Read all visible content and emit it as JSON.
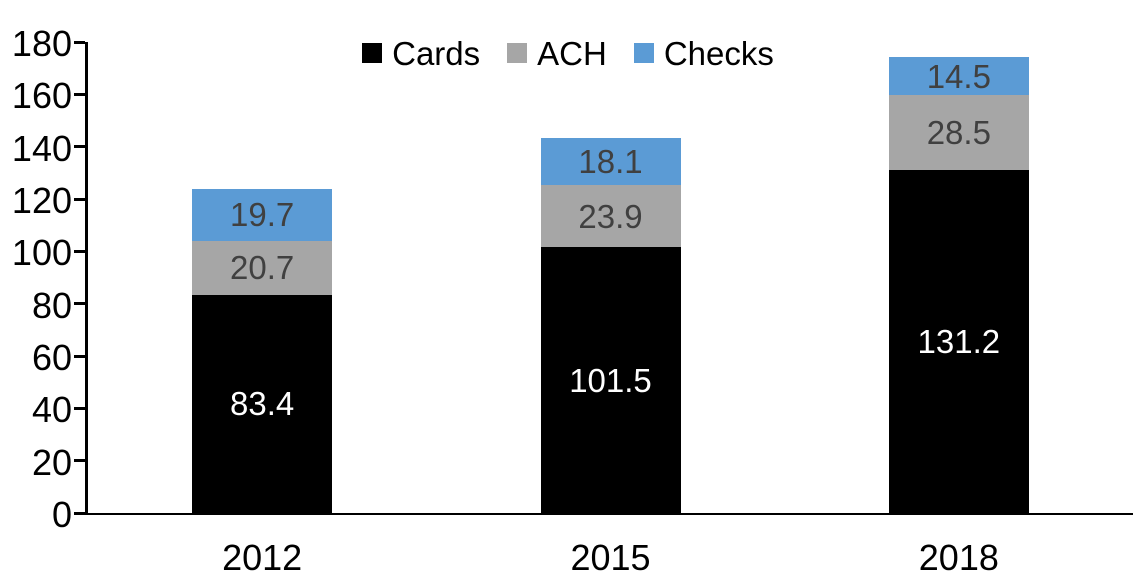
{
  "chart_data": {
    "type": "bar",
    "stacked": true,
    "title": "",
    "xlabel": "",
    "ylabel": "",
    "categories": [
      "2012",
      "2015",
      "2018"
    ],
    "series": [
      {
        "name": "Cards",
        "color": "#000000",
        "label_color": "#ffffff",
        "values": [
          83.4,
          101.5,
          131.2
        ]
      },
      {
        "name": "ACH",
        "color": "#A6A6A6",
        "label_color": "#404040",
        "values": [
          20.7,
          23.9,
          28.5
        ]
      },
      {
        "name": "Checks",
        "color": "#5B9BD5",
        "label_color": "#404040",
        "values": [
          19.7,
          18.1,
          14.5
        ]
      }
    ],
    "ylim": [
      0,
      180
    ],
    "ytick_step": 20,
    "yticks": [
      0,
      20,
      40,
      60,
      80,
      100,
      120,
      140,
      160,
      180
    ],
    "grid": false,
    "legend_position": "top",
    "axis_color": "#000000",
    "background_color": "#ffffff"
  }
}
